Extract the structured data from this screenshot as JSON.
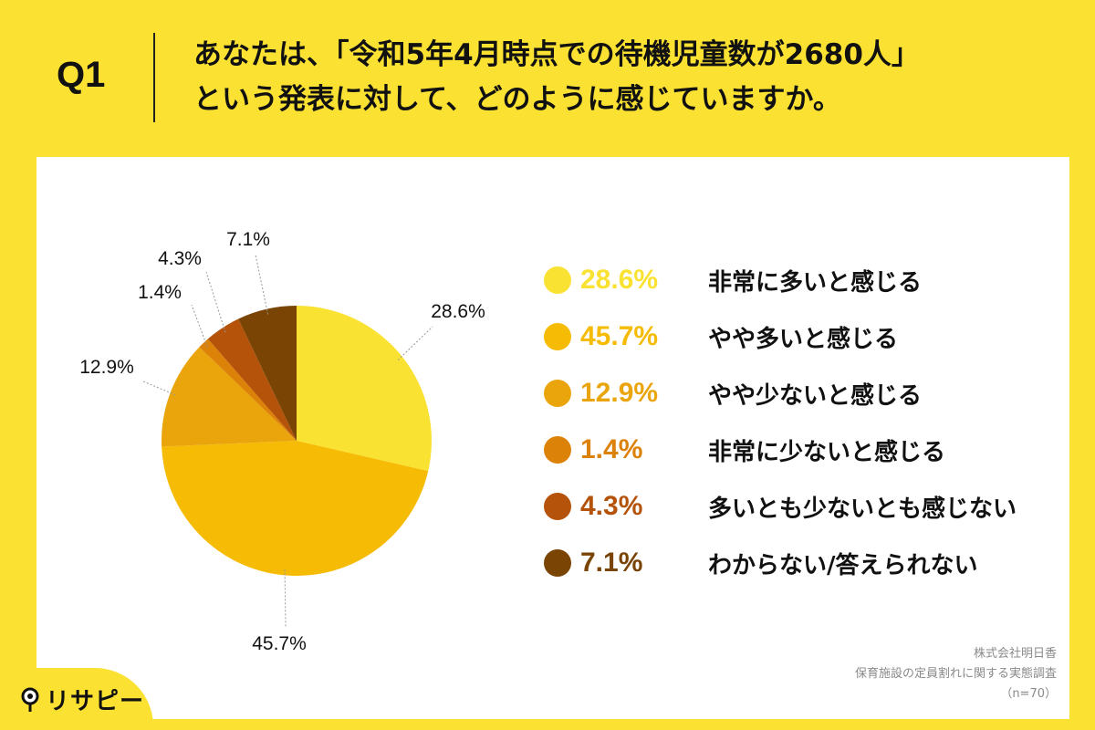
{
  "header": {
    "qnum": "Q1",
    "line1": "あなたは、「令和5年4月時点での待機児童数が2680人」",
    "line2": "という発表に対して、どのように感じていますか。"
  },
  "chart_data": {
    "type": "pie",
    "title": "",
    "categories": [
      "非常に多いと感じる",
      "やや多いと感じる",
      "やや少ないと感じる",
      "非常に少ないと感じる",
      "多いとも少ないとも感じない",
      "わからない/答えられない"
    ],
    "values": [
      28.6,
      45.7,
      12.9,
      1.4,
      4.3,
      7.1
    ],
    "value_labels": [
      "28.6%",
      "45.7%",
      "12.9%",
      "1.4%",
      "4.3%",
      "7.1%"
    ],
    "colors": [
      "#f9e231",
      "#f6bb05",
      "#eaa50d",
      "#dd8209",
      "#b45309",
      "#7a4405"
    ],
    "legend_pct_colors": [
      "#f9e231",
      "#f6bb05",
      "#eaa50d",
      "#dd8209",
      "#b45309",
      "#7a4405"
    ],
    "start": "12 o'clock",
    "direction": "clockwise",
    "legend_position": "right"
  },
  "footer": {
    "company": "株式会社明日香",
    "survey": "保育施設の定員割れに関する実態調査",
    "n": "（n=70）"
  },
  "logo": {
    "text": "リサピー"
  }
}
